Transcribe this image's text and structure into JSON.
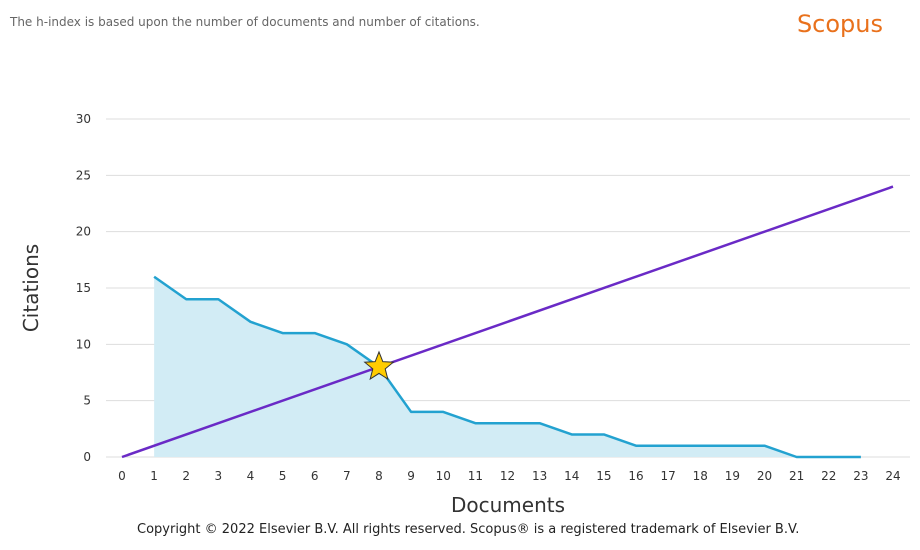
{
  "header": {
    "note": "The h-index is based upon the number of documents and number of citations.",
    "brand": "Scopus"
  },
  "footer": {
    "copyright": "Copyright © 2022 Elsevier B.V. All rights reserved. Scopus® is a registered trademark of Elsevier B.V."
  },
  "chart_data": {
    "type": "line",
    "xlabel": "Documents",
    "ylabel": "Citations",
    "xlim": [
      0,
      24
    ],
    "ylim": [
      0,
      30
    ],
    "x_ticks": [
      0,
      1,
      2,
      3,
      4,
      5,
      6,
      7,
      8,
      9,
      10,
      11,
      12,
      13,
      14,
      15,
      16,
      17,
      18,
      19,
      20,
      21,
      22,
      23,
      24
    ],
    "y_ticks": [
      0,
      5,
      10,
      15,
      20,
      25,
      30
    ],
    "grid": true,
    "series": [
      {
        "style": "area",
        "color": "#23a2d0",
        "fill": "#d2ecf5",
        "x": [
          1,
          2,
          3,
          4,
          5,
          6,
          7,
          8,
          9,
          10,
          11,
          12,
          13,
          14,
          15,
          16,
          17,
          18,
          19,
          20,
          21,
          22,
          23
        ],
        "values": [
          16,
          14,
          14,
          12,
          11,
          11,
          10,
          8,
          4,
          4,
          3,
          3,
          3,
          2,
          2,
          1,
          1,
          1,
          1,
          1,
          0,
          0,
          0
        ]
      },
      {
        "style": "line",
        "color": "#6a2ac6",
        "x": [
          0,
          24
        ],
        "values": [
          0,
          24
        ]
      }
    ],
    "marker": {
      "shape": "star",
      "x": 8,
      "y": 8,
      "color": "#ffcc00"
    }
  }
}
